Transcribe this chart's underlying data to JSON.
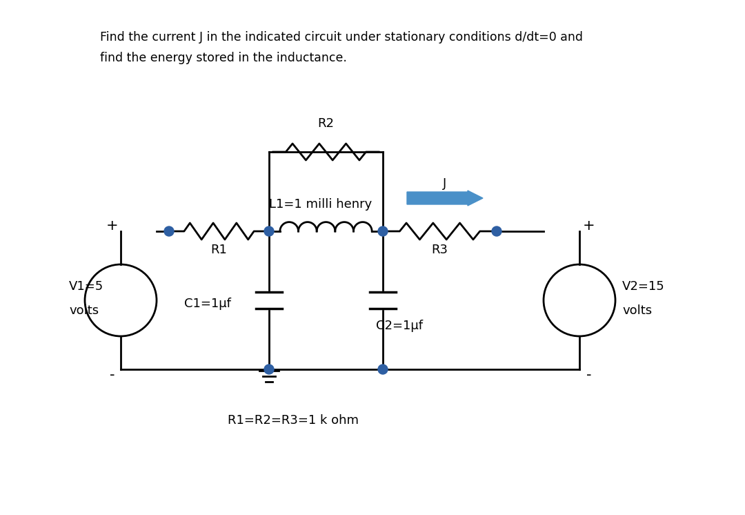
{
  "title_line1": "Find the current J in the indicated circuit under stationary conditions d/dt=0 and",
  "title_line2": "find the energy stored in the inductance.",
  "background_color": "#ffffff",
  "wire_color": "#000000",
  "node_color": "#2e5fa3",
  "arrow_color": "#4a90c8",
  "labels": {
    "R2": "R2",
    "L1": "L1=1 milli henry",
    "J": "J",
    "R1": "R1",
    "R3": "R3",
    "C1": "C1=1μf",
    "C2": "C2=1μf",
    "V1a": "V1=5",
    "V1b": "volts",
    "V2a": "V2=15",
    "V2b": "volts",
    "R_vals": "R1=R2=R3=1 k ohm"
  }
}
